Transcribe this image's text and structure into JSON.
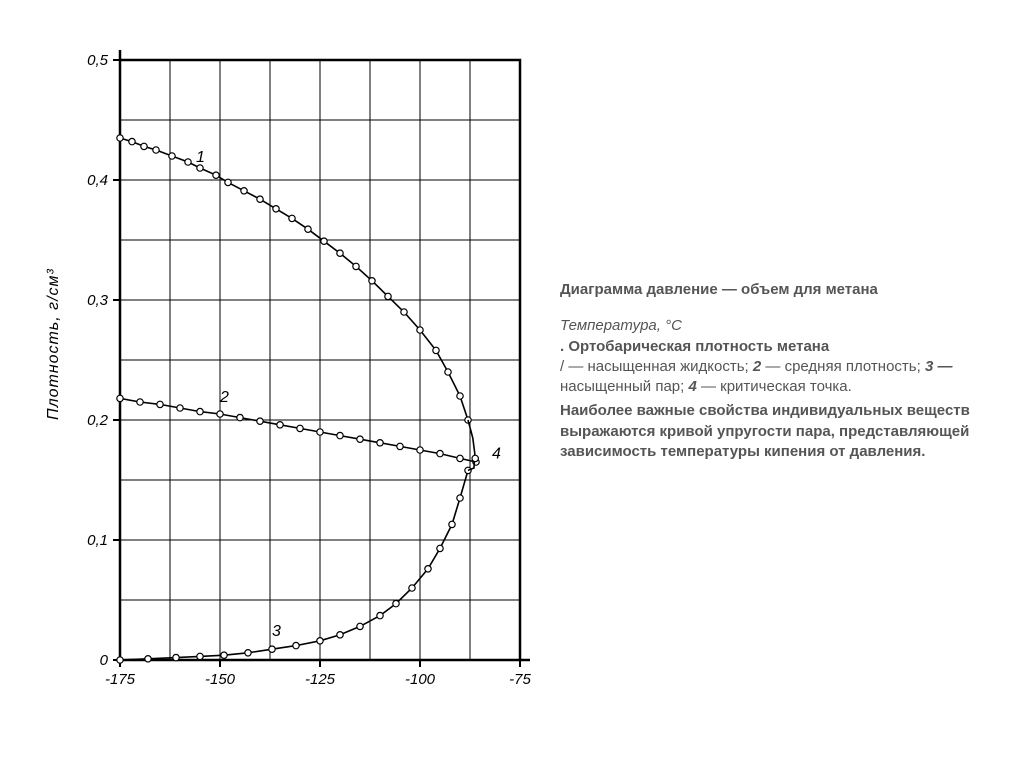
{
  "chart": {
    "type": "line-with-markers",
    "background_color": "#ffffff",
    "grid_color": "#000000",
    "axis_color": "#000000",
    "line_color": "#000000",
    "marker_fill": "#ffffff",
    "marker_stroke": "#000000",
    "marker_radius": 3.2,
    "line_width": 1.6,
    "xlim": [
      -175,
      -75
    ],
    "ylim": [
      0,
      0.5
    ],
    "x_ticks": [
      -175,
      -150,
      -125,
      -100,
      -75
    ],
    "x_tick_labels": [
      "-175",
      "-150",
      "-125",
      "-100",
      "-75"
    ],
    "y_ticks": [
      0,
      0.1,
      0.2,
      0.3,
      0.4,
      0.5
    ],
    "y_tick_labels": [
      "0",
      "0,1",
      "0,2",
      "0,3",
      "0,4",
      "0,5"
    ],
    "minor_x_step": 12.5,
    "minor_y_step": 0.05,
    "y_axis_label": "Плотность, г/см³",
    "tick_fontsize": 15,
    "axis_label_fontsize": 16,
    "series": [
      {
        "label": "1",
        "points": [
          [
            -175,
            0.435
          ],
          [
            -172,
            0.432
          ],
          [
            -169,
            0.428
          ],
          [
            -166,
            0.425
          ],
          [
            -162,
            0.42
          ],
          [
            -158,
            0.415
          ],
          [
            -155,
            0.41
          ],
          [
            -151,
            0.404
          ],
          [
            -148,
            0.398
          ],
          [
            -144,
            0.391
          ],
          [
            -140,
            0.384
          ],
          [
            -136,
            0.376
          ],
          [
            -132,
            0.368
          ],
          [
            -128,
            0.359
          ],
          [
            -124,
            0.349
          ],
          [
            -120,
            0.339
          ],
          [
            -116,
            0.328
          ],
          [
            -112,
            0.316
          ],
          [
            -108,
            0.303
          ],
          [
            -104,
            0.29
          ],
          [
            -100,
            0.275
          ],
          [
            -96,
            0.258
          ],
          [
            -93,
            0.24
          ],
          [
            -90,
            0.22
          ],
          [
            -88,
            0.2
          ]
        ]
      },
      {
        "label": "2",
        "points": [
          [
            -175,
            0.218
          ],
          [
            -170,
            0.215
          ],
          [
            -165,
            0.213
          ],
          [
            -160,
            0.21
          ],
          [
            -155,
            0.207
          ],
          [
            -150,
            0.205
          ],
          [
            -145,
            0.202
          ],
          [
            -140,
            0.199
          ],
          [
            -135,
            0.196
          ],
          [
            -130,
            0.193
          ],
          [
            -125,
            0.19
          ],
          [
            -120,
            0.187
          ],
          [
            -115,
            0.184
          ],
          [
            -110,
            0.181
          ],
          [
            -105,
            0.178
          ],
          [
            -100,
            0.175
          ],
          [
            -95,
            0.172
          ],
          [
            -90,
            0.168
          ],
          [
            -86,
            0.165
          ]
        ]
      },
      {
        "label": "3",
        "points": [
          [
            -175,
            0.0
          ],
          [
            -168,
            0.001
          ],
          [
            -161,
            0.002
          ],
          [
            -155,
            0.003
          ],
          [
            -149,
            0.004
          ],
          [
            -143,
            0.006
          ],
          [
            -137,
            0.009
          ],
          [
            -131,
            0.012
          ],
          [
            -125,
            0.016
          ],
          [
            -120,
            0.021
          ],
          [
            -115,
            0.028
          ],
          [
            -110,
            0.037
          ],
          [
            -106,
            0.047
          ],
          [
            -102,
            0.06
          ],
          [
            -98,
            0.076
          ],
          [
            -95,
            0.093
          ],
          [
            -92,
            0.113
          ],
          [
            -90,
            0.135
          ],
          [
            -88,
            0.158
          ]
        ]
      }
    ],
    "envelope_tail": [
      [
        -88,
        0.2
      ],
      [
        -86.8,
        0.185
      ],
      [
        -86.3,
        0.172
      ],
      [
        -86.5,
        0.16
      ],
      [
        -88,
        0.158
      ]
    ],
    "curve_labels": [
      {
        "text": "1",
        "x": -156,
        "y": 0.415
      },
      {
        "text": "2",
        "x": -150,
        "y": 0.215
      },
      {
        "text": "3",
        "x": -137,
        "y": 0.02
      },
      {
        "text": "4",
        "x": -82,
        "y": 0.168
      }
    ],
    "label_fontsize": 16
  },
  "text": {
    "title": "Диаграмма давление — объем для метана",
    "l1": "Температура, °С",
    "l2": ". Ортобарическая плотность метана",
    "l3a": "/ — насыщенная жидкость; ",
    "l3b": "2",
    "l3c": " — средняя плотность; ",
    "l3d": "3 —",
    "l3e": " насыщенный пар; ",
    "l3f": "4",
    "l3g": " — критическая точка.",
    "p2": "Наиболее важные свойства индивидуальных веществ выражаются кривой упругости пара, представляющей зависимость температуры кипения от давления."
  }
}
